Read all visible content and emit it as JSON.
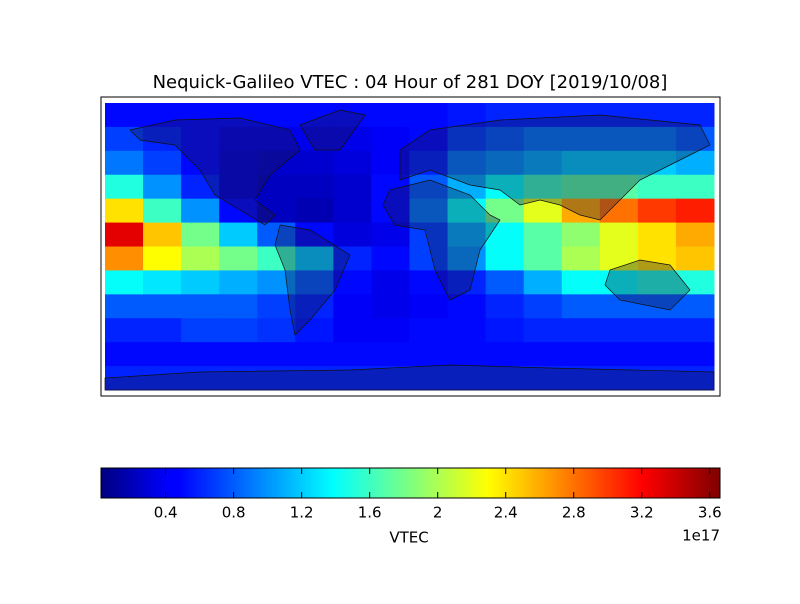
{
  "chart_data": {
    "type": "colormap",
    "title": "Nequick-Galileo VTEC : 04 Hour of 281 DOY [2019/10/08]",
    "colorbar_label": "VTEC",
    "colorbar_scale_label": "1e17",
    "colormap": "jet",
    "xlim": [
      -180,
      180
    ],
    "ylim": [
      90,
      -90
    ],
    "clim": [
      0.02,
      3.66
    ],
    "cticks": [
      0.4,
      0.8,
      1.2,
      1.6,
      2.0,
      2.4,
      2.8,
      3.2,
      3.6
    ],
    "values": [
      [
        0.5,
        0.5,
        0.5,
        0.5,
        0.5,
        0.5,
        0.5,
        0.5,
        0.5,
        0.55,
        0.6,
        0.6,
        0.6,
        0.6,
        0.6,
        0.6
      ],
      [
        0.7,
        0.6,
        0.5,
        0.4,
        0.4,
        0.4,
        0.4,
        0.45,
        0.5,
        0.7,
        0.8,
        0.9,
        0.9,
        0.9,
        0.9,
        0.8
      ],
      [
        0.9,
        0.7,
        0.5,
        0.35,
        0.3,
        0.3,
        0.35,
        0.45,
        0.6,
        0.9,
        1.0,
        1.1,
        1.2,
        1.2,
        1.2,
        1.1
      ],
      [
        1.5,
        1.0,
        0.6,
        0.35,
        0.25,
        0.25,
        0.3,
        0.5,
        0.8,
        1.1,
        1.4,
        1.6,
        1.7,
        1.7,
        1.6,
        1.6
      ],
      [
        2.4,
        1.6,
        1.0,
        0.5,
        0.25,
        0.2,
        0.3,
        0.5,
        0.9,
        1.4,
        1.8,
        2.2,
        2.6,
        2.8,
        3.0,
        3.1
      ],
      [
        3.3,
        2.5,
        1.8,
        1.2,
        0.8,
        0.5,
        0.35,
        0.4,
        0.7,
        1.1,
        1.4,
        1.7,
        1.9,
        2.2,
        2.4,
        2.6
      ],
      [
        2.7,
        2.3,
        2.0,
        1.8,
        1.6,
        1.2,
        0.6,
        0.5,
        0.7,
        1.0,
        1.4,
        1.7,
        2.0,
        2.2,
        2.4,
        2.5
      ],
      [
        1.4,
        1.3,
        1.2,
        1.1,
        1.0,
        0.8,
        0.5,
        0.4,
        0.5,
        0.6,
        0.8,
        1.1,
        1.4,
        1.4,
        1.5,
        1.5
      ],
      [
        0.8,
        0.8,
        0.8,
        0.8,
        0.7,
        0.6,
        0.45,
        0.4,
        0.45,
        0.5,
        0.6,
        0.7,
        0.8,
        0.8,
        0.8,
        0.8
      ],
      [
        0.6,
        0.6,
        0.7,
        0.7,
        0.65,
        0.55,
        0.45,
        0.45,
        0.5,
        0.5,
        0.55,
        0.6,
        0.6,
        0.6,
        0.6,
        0.6
      ],
      [
        0.5,
        0.5,
        0.5,
        0.5,
        0.5,
        0.5,
        0.5,
        0.5,
        0.5,
        0.5,
        0.5,
        0.5,
        0.5,
        0.5,
        0.5,
        0.5
      ],
      [
        0.6,
        0.6,
        0.6,
        0.6,
        0.6,
        0.6,
        0.6,
        0.6,
        0.6,
        0.6,
        0.6,
        0.6,
        0.6,
        0.6,
        0.6,
        0.6
      ]
    ]
  }
}
